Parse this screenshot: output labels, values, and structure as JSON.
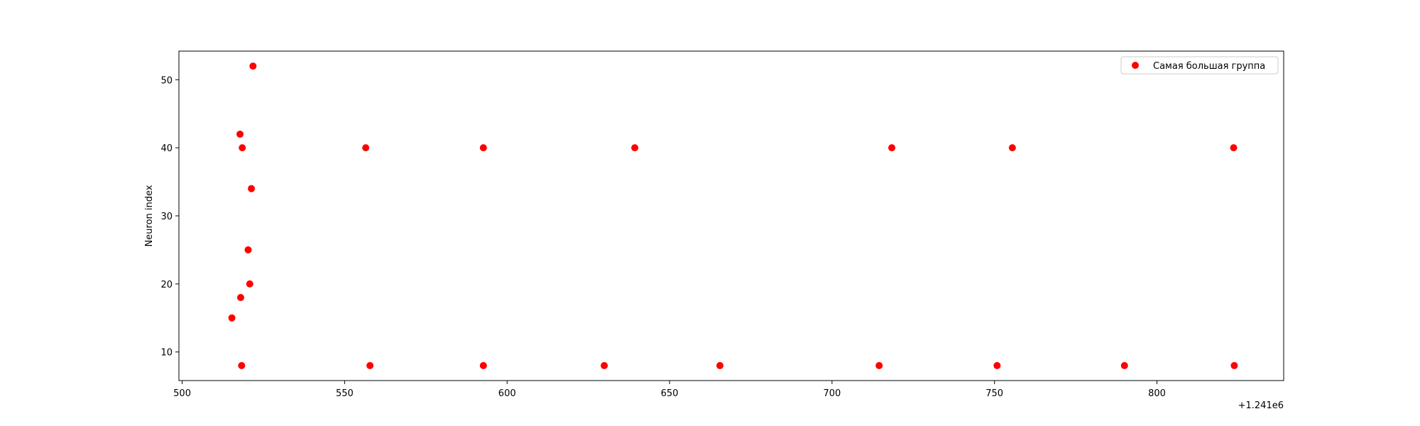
{
  "chart_data": {
    "type": "scatter",
    "title": "",
    "xlabel": "",
    "ylabel": "Neuron index",
    "x_offset_label": "+1.241e6",
    "xlim": [
      499,
      839
    ],
    "ylim": [
      5.8,
      54.2
    ],
    "xticks": [
      500,
      550,
      600,
      650,
      700,
      750,
      800
    ],
    "yticks": [
      10,
      20,
      30,
      40,
      50
    ],
    "grid": false,
    "legend_position": "top-right",
    "marker_color": "#ff0000",
    "series": [
      {
        "name": "Самая большая группа",
        "points": [
          [
            515.3,
            15
          ],
          [
            518.0,
            18
          ],
          [
            518.3,
            8
          ],
          [
            518.5,
            40
          ],
          [
            517.8,
            42
          ],
          [
            520.3,
            25
          ],
          [
            520.8,
            20
          ],
          [
            521.3,
            34
          ],
          [
            521.8,
            52
          ],
          [
            556.5,
            40
          ],
          [
            557.8,
            8
          ],
          [
            592.7,
            40
          ],
          [
            592.7,
            8
          ],
          [
            629.9,
            8
          ],
          [
            639.3,
            40
          ],
          [
            665.5,
            8
          ],
          [
            714.5,
            8
          ],
          [
            718.4,
            40
          ],
          [
            750.8,
            8
          ],
          [
            755.5,
            40
          ],
          [
            790.0,
            8
          ],
          [
            823.6,
            40
          ],
          [
            823.8,
            8
          ]
        ]
      }
    ]
  }
}
